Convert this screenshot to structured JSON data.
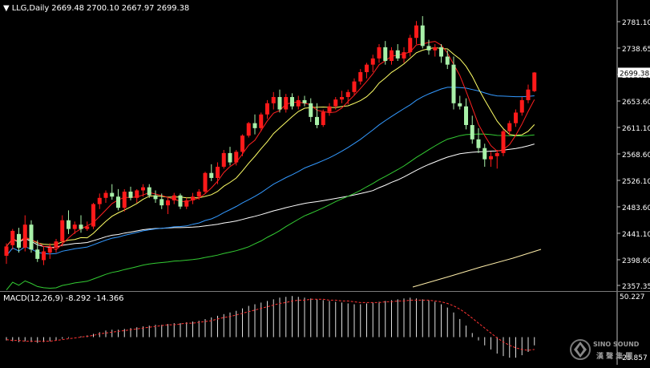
{
  "header": {
    "symbol_label": "LLG,Daily",
    "ohlc": "2669.48 2700.10 2667.97 2699.38"
  },
  "macd_header": {
    "label": "MACD(12,26,9)",
    "values": "-8.292 -14.366"
  },
  "price_axis": {
    "ticks": [
      "2781.10",
      "2738.65",
      "2696.20",
      "2653.60",
      "2611.10",
      "2568.60",
      "2526.10",
      "2483.60",
      "2441.10",
      "2398.60",
      "2357.35"
    ],
    "current_price": "2699.38",
    "ymin": 2357.35,
    "ymax": 2781.1
  },
  "macd_axis": {
    "top": "50.227",
    "bottom": "-25.857"
  },
  "logo": {
    "brand": "SINO SOUND",
    "chinese": "漢 聲 集 團"
  },
  "colors": {
    "bull": "#ff1a1a",
    "bear": "#a8f0a8",
    "ma_fast": "#ff2020",
    "ma_yellow": "#ffff66",
    "ma_blue": "#3399ff",
    "ma_green": "#33cc33",
    "ma_white": "#ffffff",
    "ma_cream": "#ffeeaa",
    "macd_signal": "#ff3333",
    "current_price_bg": "#ffffff"
  },
  "chart_data": {
    "type": "candlestick",
    "title": "LLG,Daily",
    "ylim": [
      2357.35,
      2781.1
    ],
    "candles": [
      [
        2405,
        2425,
        2392,
        2420
      ],
      [
        2422,
        2448,
        2415,
        2445
      ],
      [
        2440,
        2450,
        2410,
        2418
      ],
      [
        2418,
        2470,
        2412,
        2455
      ],
      [
        2455,
        2462,
        2410,
        2415
      ],
      [
        2415,
        2430,
        2395,
        2400
      ],
      [
        2398,
        2420,
        2390,
        2412
      ],
      [
        2410,
        2425,
        2400,
        2418
      ],
      [
        2418,
        2432,
        2410,
        2428
      ],
      [
        2428,
        2470,
        2420,
        2462
      ],
      [
        2462,
        2478,
        2440,
        2448
      ],
      [
        2448,
        2460,
        2440,
        2455
      ],
      [
        2455,
        2470,
        2442,
        2448
      ],
      [
        2448,
        2460,
        2445,
        2452
      ],
      [
        2452,
        2490,
        2448,
        2488
      ],
      [
        2488,
        2505,
        2480,
        2498
      ],
      [
        2498,
        2510,
        2490,
        2506
      ],
      [
        2506,
        2520,
        2495,
        2500
      ],
      [
        2500,
        2512,
        2478,
        2482
      ],
      [
        2482,
        2512,
        2476,
        2508
      ],
      [
        2508,
        2516,
        2494,
        2498
      ],
      [
        2498,
        2512,
        2490,
        2510
      ],
      [
        2510,
        2520,
        2500,
        2515
      ],
      [
        2515,
        2520,
        2498,
        2502
      ],
      [
        2502,
        2510,
        2490,
        2496
      ],
      [
        2496,
        2505,
        2480,
        2486
      ],
      [
        2486,
        2498,
        2472,
        2494
      ],
      [
        2494,
        2506,
        2488,
        2502
      ],
      [
        2502,
        2505,
        2480,
        2484
      ],
      [
        2484,
        2498,
        2480,
        2494
      ],
      [
        2494,
        2506,
        2488,
        2500
      ],
      [
        2500,
        2512,
        2495,
        2508
      ],
      [
        2508,
        2540,
        2505,
        2538
      ],
      [
        2538,
        2552,
        2525,
        2530
      ],
      [
        2530,
        2555,
        2520,
        2548
      ],
      [
        2548,
        2575,
        2545,
        2570
      ],
      [
        2570,
        2580,
        2550,
        2555
      ],
      [
        2555,
        2575,
        2550,
        2572
      ],
      [
        2572,
        2600,
        2565,
        2598
      ],
      [
        2598,
        2620,
        2595,
        2618
      ],
      [
        2618,
        2632,
        2600,
        2610
      ],
      [
        2610,
        2635,
        2605,
        2632
      ],
      [
        2632,
        2655,
        2625,
        2650
      ],
      [
        2650,
        2668,
        2640,
        2660
      ],
      [
        2660,
        2672,
        2635,
        2640
      ],
      [
        2640,
        2665,
        2635,
        2660
      ],
      [
        2660,
        2666,
        2640,
        2645
      ],
      [
        2645,
        2662,
        2640,
        2655
      ],
      [
        2655,
        2662,
        2645,
        2650
      ],
      [
        2650,
        2658,
        2620,
        2628
      ],
      [
        2628,
        2650,
        2610,
        2615
      ],
      [
        2615,
        2640,
        2612,
        2636
      ],
      [
        2636,
        2650,
        2630,
        2645
      ],
      [
        2645,
        2660,
        2640,
        2656
      ],
      [
        2656,
        2670,
        2650,
        2660
      ],
      [
        2660,
        2672,
        2648,
        2668
      ],
      [
        2668,
        2690,
        2662,
        2685
      ],
      [
        2685,
        2705,
        2680,
        2700
      ],
      [
        2700,
        2715,
        2690,
        2712
      ],
      [
        2712,
        2728,
        2700,
        2722
      ],
      [
        2722,
        2745,
        2715,
        2740
      ],
      [
        2740,
        2750,
        2712,
        2718
      ],
      [
        2718,
        2740,
        2712,
        2735
      ],
      [
        2735,
        2745,
        2718,
        2722
      ],
      [
        2722,
        2740,
        2715,
        2732
      ],
      [
        2732,
        2760,
        2725,
        2755
      ],
      [
        2755,
        2782,
        2745,
        2775
      ],
      [
        2775,
        2790,
        2738,
        2742
      ],
      [
        2742,
        2752,
        2728,
        2735
      ],
      [
        2735,
        2745,
        2725,
        2740
      ],
      [
        2740,
        2745,
        2715,
        2725
      ],
      [
        2725,
        2735,
        2705,
        2712
      ],
      [
        2712,
        2725,
        2640,
        2650
      ],
      [
        2650,
        2662,
        2640,
        2645
      ],
      [
        2645,
        2658,
        2608,
        2615
      ],
      [
        2615,
        2630,
        2585,
        2592
      ],
      [
        2592,
        2610,
        2570,
        2578
      ],
      [
        2578,
        2585,
        2548,
        2560
      ],
      [
        2560,
        2572,
        2548,
        2565
      ],
      [
        2565,
        2575,
        2545,
        2570
      ],
      [
        2570,
        2608,
        2565,
        2605
      ],
      [
        2605,
        2622,
        2598,
        2618
      ],
      [
        2618,
        2640,
        2612,
        2635
      ],
      [
        2635,
        2660,
        2630,
        2655
      ],
      [
        2655,
        2680,
        2650,
        2672
      ],
      [
        2669.48,
        2700.1,
        2667.97,
        2699.38
      ]
    ],
    "macd_hist": [
      -4,
      -5,
      -6,
      -5,
      -6,
      -7,
      -6,
      -5,
      -4,
      -2,
      -1,
      0,
      1,
      2,
      4,
      6,
      8,
      9,
      9,
      10,
      11,
      12,
      13,
      14,
      15,
      15,
      16,
      17,
      17,
      18,
      19,
      20,
      22,
      24,
      26,
      28,
      30,
      32,
      35,
      38,
      40,
      42,
      44,
      46,
      48,
      49,
      50,
      49,
      48,
      47,
      46,
      45,
      44,
      43,
      42,
      41,
      40,
      40,
      41,
      42,
      43,
      44,
      45,
      46,
      47,
      48,
      47,
      46,
      45,
      43,
      40,
      36,
      30,
      22,
      14,
      5,
      -4,
      -10,
      -15,
      -20,
      -23,
      -25,
      -25,
      -22,
      -18,
      -10
    ],
    "macd_signal": [
      -3,
      -4,
      -4,
      -5,
      -5,
      -5,
      -5,
      -5,
      -4,
      -3,
      -2,
      -1,
      0,
      1,
      2,
      4,
      5,
      6,
      7,
      8,
      9,
      10,
      11,
      12,
      13,
      14,
      15,
      15,
      16,
      17,
      17,
      18,
      19,
      20,
      22,
      24,
      25,
      27,
      29,
      31,
      33,
      35,
      37,
      39,
      41,
      42,
      44,
      45,
      45,
      46,
      46,
      46,
      45,
      45,
      44,
      44,
      43,
      42,
      42,
      42,
      42,
      43,
      43,
      44,
      44,
      45,
      45,
      45,
      45,
      44,
      43,
      41,
      38,
      34,
      29,
      23,
      17,
      11,
      5,
      -1,
      -6,
      -10,
      -13,
      -15,
      -16,
      -15
    ]
  }
}
